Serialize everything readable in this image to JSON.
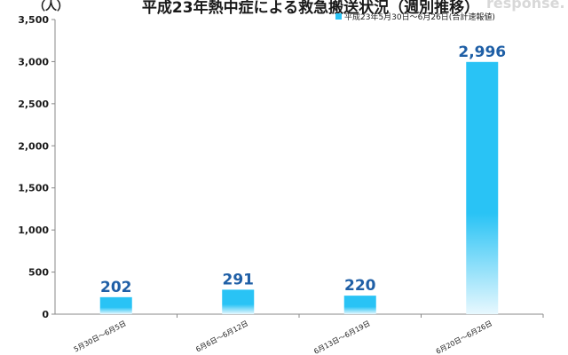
{
  "header": {
    "title": "平成23年熱中症による救急搬送状況（週別推移）",
    "unit": "（人）",
    "watermark": "response."
  },
  "chart_data": {
    "type": "bar",
    "title": "平成23年熱中症による救急搬送状況（週別推移）",
    "xlabel": "",
    "ylabel": "（人）",
    "categories": [
      "5月30日～6月5日",
      "6月6日～6月12日",
      "6月13日～6月19日",
      "6月20日～6月26日"
    ],
    "series": [
      {
        "name": "平成23年5月30日～6月26日(合計速報値)",
        "values": [
          202,
          291,
          220,
          2996
        ]
      }
    ],
    "data_labels": [
      "202",
      "291",
      "220",
      "2,996"
    ],
    "ylim": [
      0,
      3500
    ],
    "yticks": [
      "0",
      "500",
      "1,000",
      "1,500",
      "2,000",
      "2,500",
      "3,000",
      "3,500"
    ],
    "ytick_values": [
      0,
      500,
      1000,
      1500,
      2000,
      2500,
      3000,
      3500
    ],
    "grid": false,
    "legend": "top-right",
    "colors": {
      "bar": "#29c3f5",
      "bar_fade": "#e8f8fe",
      "label": "#1f5fa6",
      "axis": "#888888"
    }
  }
}
